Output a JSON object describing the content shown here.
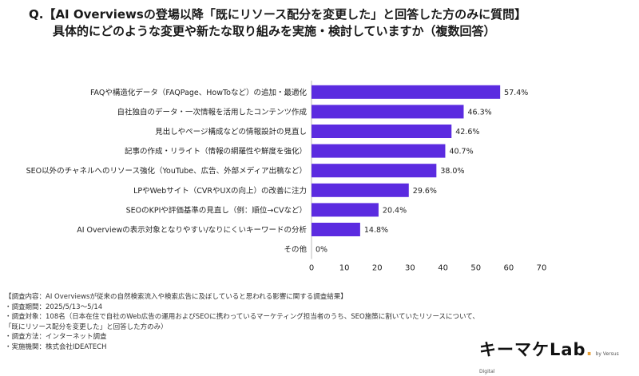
{
  "title": {
    "line1": "Q.【AI Overviewsの登場以降「既にリソース配分を変更した」と回答した方のみに質問】",
    "line2": "具体的にどのような変更や新たな取り組みを実施・検討していますか（複数回答）"
  },
  "chart_data": {
    "type": "bar",
    "orientation": "horizontal",
    "categories": [
      "FAQや構造化データ（FAQPage、HowToなど）の追加・最適化",
      "自社独自のデータ・一次情報を活用したコンテンツ作成",
      "見出しやページ構成などの情報設計の見直し",
      "記事の作成・リライト（情報の網羅性や鮮度を強化）",
      "SEO以外のチャネルへのリソース強化（YouTube、広告、外部メディア出稿など）",
      "LPやWebサイト（CVRやUXの向上）の改善に注力",
      "SEOのKPIや評価基準の見直し（例：順位→CVなど）",
      "AI Overviewの表示対象となりやすい/なりにくいキーワードの分析",
      "その他"
    ],
    "values": [
      57.4,
      46.3,
      42.6,
      40.7,
      38.0,
      29.6,
      20.4,
      14.8,
      0
    ],
    "value_labels": [
      "57.4%",
      "46.3%",
      "42.6%",
      "40.7%",
      "38.0%",
      "29.6%",
      "20.4%",
      "14.8%",
      "0%"
    ],
    "xlim": [
      0,
      70
    ],
    "xticks": [
      "0",
      "10",
      "20",
      "30",
      "40",
      "50",
      "60",
      "70"
    ],
    "color": "#5b2be0"
  },
  "notes": [
    "【調査内容：AI Overviewsが従来の自然検索流入や検索広告に及ぼしていると思われる影響に関する調査結果】",
    "・調査期間：2025/5/13〜5/14",
    "・調査対象：108名（日本在住で自社のWeb広告の運用およびSEOに携わっているマーケティング担当者のうち、SEO施策に割いていたリソースについて、",
    "「既にリソース配分を変更した」と回答した方のみ）",
    "・調査方法：インターネット調査",
    "・実施機関：株式会社IDEATECH"
  ],
  "logo": {
    "text": "キーマケLab",
    "dot": ".",
    "sub": "by Versus Digital"
  }
}
